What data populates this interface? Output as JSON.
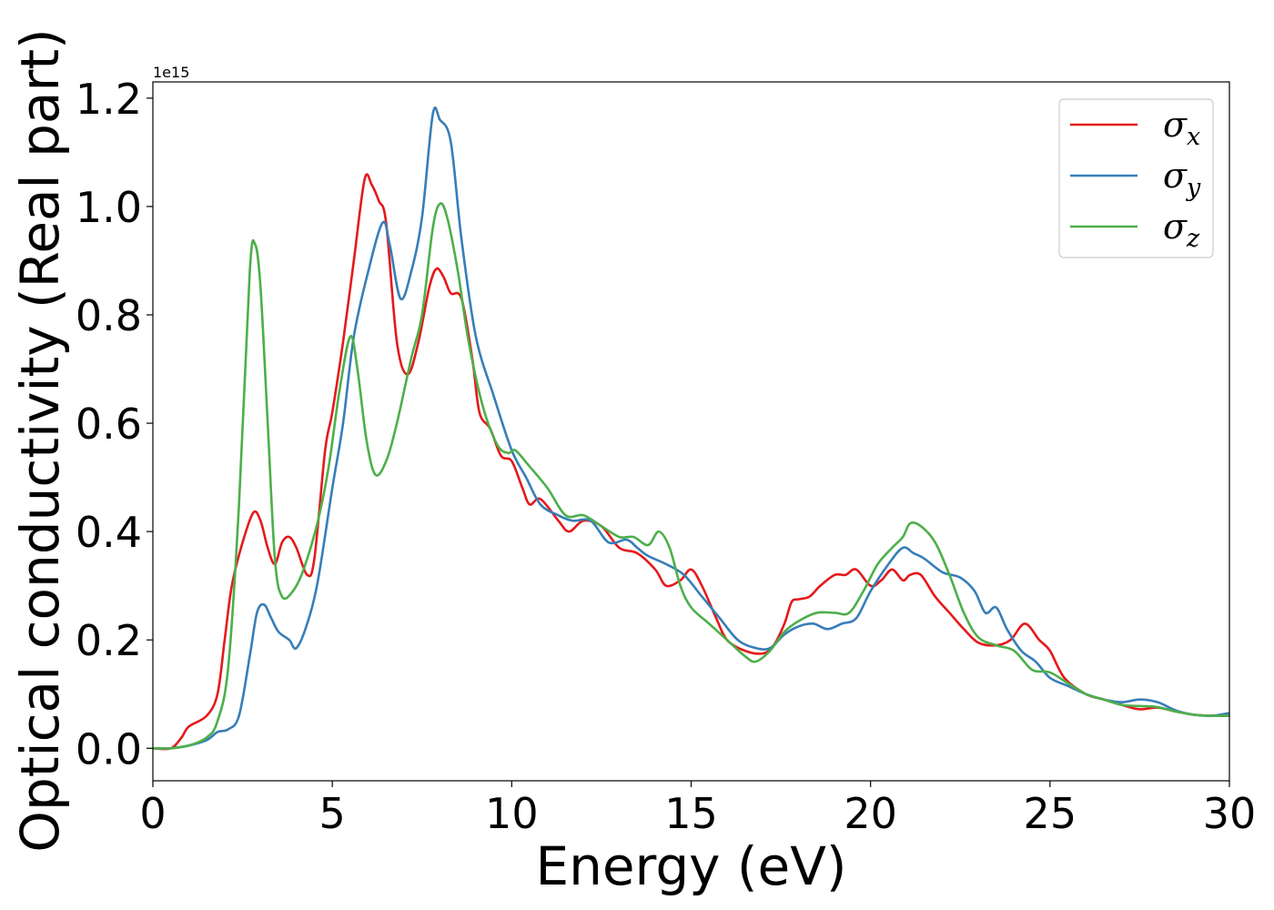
{
  "chart_data": {
    "type": "line",
    "title": "",
    "xlabel": "Energy (eV)",
    "ylabel": "Optical conductivity (Real part)",
    "y_offset_label": "1e15",
    "xlim": [
      0,
      30
    ],
    "ylim": [
      -0.06,
      1.23
    ],
    "xticks": [
      0,
      5,
      10,
      15,
      20,
      25,
      30
    ],
    "xtick_labels": [
      "0",
      "5",
      "10",
      "15",
      "20",
      "25",
      "30"
    ],
    "yticks": [
      0.0,
      0.2,
      0.4,
      0.6,
      0.8,
      1.0,
      1.2
    ],
    "ytick_labels": [
      "0.0",
      "0.2",
      "0.4",
      "0.6",
      "0.8",
      "1.0",
      "1.2"
    ],
    "grid": false,
    "legend_position": "top-right",
    "series": [
      {
        "name": "σx",
        "name_base": "σ",
        "name_sub": "x",
        "color": "#e41a1c",
        "points": [
          [
            0,
            0
          ],
          [
            0.5,
            0.0
          ],
          [
            0.8,
            0.02
          ],
          [
            1.0,
            0.04
          ],
          [
            1.5,
            0.06
          ],
          [
            1.8,
            0.1
          ],
          [
            2.0,
            0.2
          ],
          [
            2.2,
            0.3
          ],
          [
            2.5,
            0.38
          ],
          [
            2.8,
            0.435
          ],
          [
            3.0,
            0.42
          ],
          [
            3.2,
            0.37
          ],
          [
            3.4,
            0.34
          ],
          [
            3.6,
            0.38
          ],
          [
            3.8,
            0.39
          ],
          [
            4.0,
            0.37
          ],
          [
            4.3,
            0.32
          ],
          [
            4.5,
            0.35
          ],
          [
            4.8,
            0.55
          ],
          [
            5.0,
            0.62
          ],
          [
            5.3,
            0.75
          ],
          [
            5.6,
            0.9
          ],
          [
            5.9,
            1.05
          ],
          [
            6.1,
            1.04
          ],
          [
            6.3,
            1.01
          ],
          [
            6.5,
            0.97
          ],
          [
            6.8,
            0.75
          ],
          [
            7.1,
            0.69
          ],
          [
            7.4,
            0.75
          ],
          [
            7.7,
            0.85
          ],
          [
            7.9,
            0.885
          ],
          [
            8.1,
            0.87
          ],
          [
            8.3,
            0.84
          ],
          [
            8.6,
            0.83
          ],
          [
            8.9,
            0.72
          ],
          [
            9.1,
            0.62
          ],
          [
            9.4,
            0.59
          ],
          [
            9.7,
            0.54
          ],
          [
            10.0,
            0.53
          ],
          [
            10.3,
            0.48
          ],
          [
            10.5,
            0.45
          ],
          [
            10.8,
            0.46
          ],
          [
            11.3,
            0.42
          ],
          [
            11.6,
            0.4
          ],
          [
            12.0,
            0.42
          ],
          [
            12.5,
            0.41
          ],
          [
            13.0,
            0.37
          ],
          [
            13.5,
            0.36
          ],
          [
            14.0,
            0.33
          ],
          [
            14.3,
            0.3
          ],
          [
            14.7,
            0.31
          ],
          [
            15.0,
            0.33
          ],
          [
            15.3,
            0.3
          ],
          [
            15.7,
            0.24
          ],
          [
            16.0,
            0.2
          ],
          [
            16.5,
            0.18
          ],
          [
            17.0,
            0.175
          ],
          [
            17.3,
            0.19
          ],
          [
            17.6,
            0.23
          ],
          [
            17.8,
            0.27
          ],
          [
            18.0,
            0.275
          ],
          [
            18.3,
            0.28
          ],
          [
            18.6,
            0.3
          ],
          [
            19.0,
            0.32
          ],
          [
            19.3,
            0.32
          ],
          [
            19.6,
            0.33
          ],
          [
            20.0,
            0.3
          ],
          [
            20.3,
            0.31
          ],
          [
            20.6,
            0.33
          ],
          [
            20.9,
            0.31
          ],
          [
            21.1,
            0.32
          ],
          [
            21.4,
            0.32
          ],
          [
            21.8,
            0.28
          ],
          [
            22.2,
            0.25
          ],
          [
            22.6,
            0.22
          ],
          [
            23.0,
            0.195
          ],
          [
            23.5,
            0.19
          ],
          [
            23.9,
            0.2
          ],
          [
            24.3,
            0.23
          ],
          [
            24.7,
            0.2
          ],
          [
            25.0,
            0.18
          ],
          [
            25.4,
            0.13
          ],
          [
            26.0,
            0.1
          ],
          [
            26.5,
            0.09
          ],
          [
            27.0,
            0.08
          ],
          [
            27.5,
            0.072
          ],
          [
            28.0,
            0.075
          ],
          [
            28.5,
            0.068
          ],
          [
            29.0,
            0.062
          ],
          [
            29.5,
            0.06
          ],
          [
            30.0,
            0.06
          ]
        ]
      },
      {
        "name": "σy",
        "name_base": "σ",
        "name_sub": "y",
        "color": "#377eb8",
        "points": [
          [
            0,
            0
          ],
          [
            0.5,
            0.0
          ],
          [
            1.0,
            0.005
          ],
          [
            1.5,
            0.015
          ],
          [
            1.8,
            0.03
          ],
          [
            2.1,
            0.035
          ],
          [
            2.4,
            0.06
          ],
          [
            2.7,
            0.17
          ],
          [
            2.9,
            0.25
          ],
          [
            3.1,
            0.265
          ],
          [
            3.3,
            0.24
          ],
          [
            3.5,
            0.215
          ],
          [
            3.8,
            0.2
          ],
          [
            4.0,
            0.185
          ],
          [
            4.3,
            0.23
          ],
          [
            4.6,
            0.31
          ],
          [
            5.0,
            0.48
          ],
          [
            5.3,
            0.6
          ],
          [
            5.6,
            0.76
          ],
          [
            6.0,
            0.88
          ],
          [
            6.4,
            0.97
          ],
          [
            6.6,
            0.93
          ],
          [
            6.9,
            0.83
          ],
          [
            7.2,
            0.88
          ],
          [
            7.5,
            0.98
          ],
          [
            7.8,
            1.17
          ],
          [
            8.0,
            1.16
          ],
          [
            8.3,
            1.12
          ],
          [
            8.6,
            0.94
          ],
          [
            9.0,
            0.76
          ],
          [
            9.5,
            0.65
          ],
          [
            10.0,
            0.55
          ],
          [
            10.4,
            0.5
          ],
          [
            10.8,
            0.45
          ],
          [
            11.3,
            0.43
          ],
          [
            11.7,
            0.42
          ],
          [
            12.2,
            0.42
          ],
          [
            12.7,
            0.38
          ],
          [
            13.2,
            0.385
          ],
          [
            13.5,
            0.37
          ],
          [
            13.8,
            0.355
          ],
          [
            14.3,
            0.34
          ],
          [
            14.8,
            0.32
          ],
          [
            15.3,
            0.28
          ],
          [
            15.8,
            0.24
          ],
          [
            16.3,
            0.2
          ],
          [
            16.8,
            0.185
          ],
          [
            17.2,
            0.185
          ],
          [
            17.6,
            0.21
          ],
          [
            18.0,
            0.225
          ],
          [
            18.4,
            0.23
          ],
          [
            18.8,
            0.22
          ],
          [
            19.2,
            0.23
          ],
          [
            19.6,
            0.24
          ],
          [
            20.0,
            0.29
          ],
          [
            20.5,
            0.34
          ],
          [
            20.9,
            0.37
          ],
          [
            21.2,
            0.36
          ],
          [
            21.5,
            0.35
          ],
          [
            22.0,
            0.325
          ],
          [
            22.5,
            0.315
          ],
          [
            22.9,
            0.29
          ],
          [
            23.2,
            0.25
          ],
          [
            23.5,
            0.26
          ],
          [
            23.8,
            0.22
          ],
          [
            24.2,
            0.18
          ],
          [
            24.6,
            0.16
          ],
          [
            25.0,
            0.13
          ],
          [
            25.5,
            0.115
          ],
          [
            26.0,
            0.1
          ],
          [
            26.5,
            0.09
          ],
          [
            27.0,
            0.085
          ],
          [
            27.5,
            0.09
          ],
          [
            28.0,
            0.085
          ],
          [
            28.5,
            0.07
          ],
          [
            29.0,
            0.062
          ],
          [
            29.5,
            0.06
          ],
          [
            30.0,
            0.065
          ]
        ]
      },
      {
        "name": "σz",
        "name_base": "σ",
        "name_sub": "z",
        "color": "#4daf4a",
        "points": [
          [
            0,
            0
          ],
          [
            0.5,
            0.0
          ],
          [
            1.0,
            0.005
          ],
          [
            1.5,
            0.02
          ],
          [
            1.8,
            0.05
          ],
          [
            2.1,
            0.15
          ],
          [
            2.4,
            0.45
          ],
          [
            2.7,
            0.88
          ],
          [
            2.85,
            0.93
          ],
          [
            3.0,
            0.85
          ],
          [
            3.2,
            0.6
          ],
          [
            3.4,
            0.35
          ],
          [
            3.6,
            0.28
          ],
          [
            3.9,
            0.29
          ],
          [
            4.2,
            0.33
          ],
          [
            4.6,
            0.42
          ],
          [
            4.9,
            0.52
          ],
          [
            5.2,
            0.66
          ],
          [
            5.5,
            0.76
          ],
          [
            5.7,
            0.7
          ],
          [
            5.95,
            0.57
          ],
          [
            6.2,
            0.505
          ],
          [
            6.5,
            0.53
          ],
          [
            6.8,
            0.6
          ],
          [
            7.2,
            0.72
          ],
          [
            7.5,
            0.8
          ],
          [
            7.8,
            0.96
          ],
          [
            8.0,
            1.005
          ],
          [
            8.2,
            0.98
          ],
          [
            8.5,
            0.88
          ],
          [
            8.8,
            0.75
          ],
          [
            9.2,
            0.63
          ],
          [
            9.6,
            0.56
          ],
          [
            9.9,
            0.545
          ],
          [
            10.1,
            0.55
          ],
          [
            10.5,
            0.52
          ],
          [
            11.0,
            0.48
          ],
          [
            11.5,
            0.43
          ],
          [
            12.0,
            0.43
          ],
          [
            12.5,
            0.41
          ],
          [
            13.0,
            0.39
          ],
          [
            13.4,
            0.39
          ],
          [
            13.8,
            0.375
          ],
          [
            14.1,
            0.4
          ],
          [
            14.4,
            0.37
          ],
          [
            14.7,
            0.3
          ],
          [
            15.0,
            0.26
          ],
          [
            15.5,
            0.23
          ],
          [
            16.0,
            0.2
          ],
          [
            16.5,
            0.17
          ],
          [
            16.8,
            0.16
          ],
          [
            17.2,
            0.18
          ],
          [
            17.6,
            0.215
          ],
          [
            18.0,
            0.235
          ],
          [
            18.5,
            0.25
          ],
          [
            19.0,
            0.25
          ],
          [
            19.4,
            0.25
          ],
          [
            19.8,
            0.29
          ],
          [
            20.2,
            0.34
          ],
          [
            20.6,
            0.37
          ],
          [
            20.9,
            0.39
          ],
          [
            21.1,
            0.415
          ],
          [
            21.4,
            0.41
          ],
          [
            21.8,
            0.38
          ],
          [
            22.2,
            0.32
          ],
          [
            22.6,
            0.25
          ],
          [
            23.0,
            0.205
          ],
          [
            23.5,
            0.19
          ],
          [
            24.0,
            0.18
          ],
          [
            24.5,
            0.145
          ],
          [
            25.0,
            0.14
          ],
          [
            25.5,
            0.12
          ],
          [
            26.0,
            0.1
          ],
          [
            26.5,
            0.09
          ],
          [
            27.0,
            0.08
          ],
          [
            27.5,
            0.078
          ],
          [
            28.0,
            0.076
          ],
          [
            28.5,
            0.068
          ],
          [
            29.0,
            0.062
          ],
          [
            29.5,
            0.06
          ],
          [
            30.0,
            0.06
          ]
        ]
      }
    ]
  }
}
